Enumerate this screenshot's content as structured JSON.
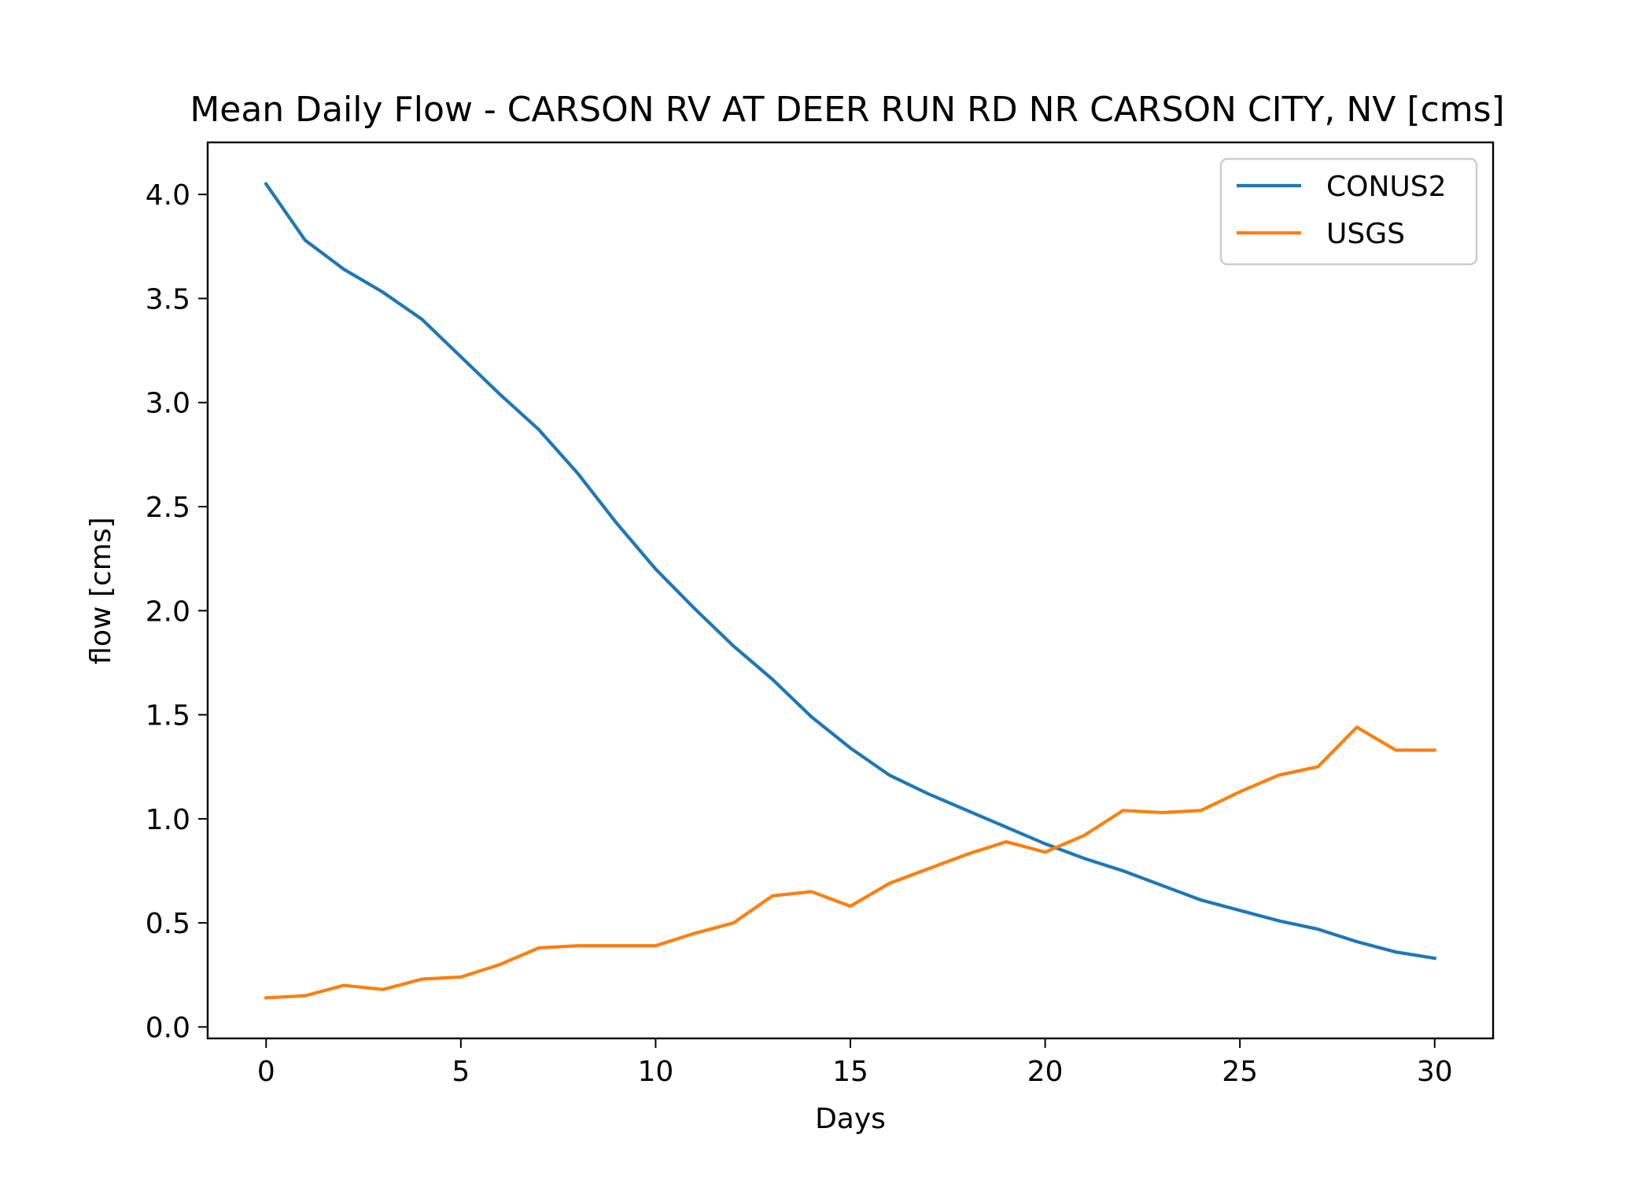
{
  "chart_data": {
    "type": "line",
    "title": "Mean Daily Flow - CARSON RV AT DEER RUN RD NR CARSON CITY, NV [cms]",
    "xlabel": "Days",
    "ylabel": "flow [cms]",
    "xlim": [
      -1.5,
      31.5
    ],
    "ylim": [
      -0.055,
      4.25
    ],
    "xticks": [
      0,
      5,
      10,
      15,
      20,
      25,
      30
    ],
    "xtick_labels": [
      "0",
      "5",
      "10",
      "15",
      "20",
      "25",
      "30"
    ],
    "yticks": [
      0.0,
      0.5,
      1.0,
      1.5,
      2.0,
      2.5,
      3.0,
      3.5,
      4.0
    ],
    "ytick_labels": [
      "0.0",
      "0.5",
      "1.0",
      "1.5",
      "2.0",
      "2.5",
      "3.0",
      "3.5",
      "4.0"
    ],
    "grid": false,
    "legend_position": "top-right",
    "x": [
      0,
      1,
      2,
      3,
      4,
      5,
      6,
      7,
      8,
      9,
      10,
      11,
      12,
      13,
      14,
      15,
      16,
      17,
      18,
      19,
      20,
      21,
      22,
      23,
      24,
      25,
      26,
      27,
      28,
      29,
      30
    ],
    "series": [
      {
        "name": "CONUS2",
        "color": "#1f77b4",
        "values": [
          4.05,
          3.78,
          3.64,
          3.53,
          3.4,
          3.22,
          3.04,
          2.87,
          2.66,
          2.42,
          2.2,
          2.01,
          1.83,
          1.67,
          1.49,
          1.34,
          1.21,
          1.12,
          1.04,
          0.96,
          0.88,
          0.81,
          0.75,
          0.68,
          0.61,
          0.56,
          0.51,
          0.47,
          0.41,
          0.36,
          0.33
        ]
      },
      {
        "name": "USGS",
        "color": "#ff7f0e",
        "values": [
          0.14,
          0.15,
          0.2,
          0.18,
          0.23,
          0.24,
          0.3,
          0.38,
          0.39,
          0.39,
          0.39,
          0.45,
          0.5,
          0.63,
          0.65,
          0.58,
          0.69,
          0.76,
          0.83,
          0.89,
          0.84,
          0.92,
          1.04,
          1.03,
          1.04,
          1.13,
          1.21,
          1.25,
          1.44,
          1.33,
          1.33
        ]
      }
    ]
  }
}
